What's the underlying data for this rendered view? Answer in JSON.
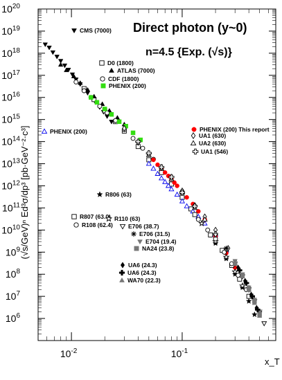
{
  "chart_data": {
    "type": "scatter",
    "title": "Direct photon (y~0)",
    "subtitle": "n=4.5  {Exp. (√s)}",
    "xlabel": "x_T",
    "ylabel": "(√s/GeV)ⁿ Ed³σ/dp³ [pb·GeV⁻²·c³]",
    "x_scale": "log",
    "y_scale": "log",
    "xlim": [
      0.005,
      0.7
    ],
    "ylim": [
      100000.0,
      1e+20
    ],
    "x_tick_labels": [
      "10^-2",
      "10^-1"
    ],
    "y_tick_labels": [
      "10^6",
      "10^7",
      "10^8",
      "10^9",
      "10^10",
      "10^11",
      "10^12",
      "10^13",
      "10^14",
      "10^15",
      "10^16",
      "10^17",
      "10^18",
      "10^19",
      "10^20"
    ],
    "grid": false,
    "colors": {
      "red": "#ff0000",
      "green": "#33dd11",
      "blue": "#0000ee",
      "gray": "#777777",
      "black": "#000000"
    },
    "series": [
      {
        "name": "CMS (7000)",
        "marker": "triangle-down-filled",
        "color": "#000000",
        "x": [
          0.0058,
          0.0063,
          0.0068,
          0.0074,
          0.008,
          0.0087,
          0.0094,
          0.0102,
          0.011,
          0.012,
          0.013,
          0.014,
          0.0152,
          0.0165,
          0.018,
          0.0195,
          0.021,
          0.023
        ],
        "y": [
          2.5e+18,
          1.8e+18,
          1.1e+18,
          7e+17,
          4.5e+17,
          2.8e+17,
          1.8e+17,
          1.1e+17,
          6.5e+16,
          4e+16,
          2.5e+16,
          1.6e+16,
          1e+16,
          6000000000000000.0,
          3600000000000000.0,
          2200000000000000.0,
          1400000000000000.0,
          800000000000000.0
        ]
      },
      {
        "name": "D0 (1800)",
        "marker": "square-open",
        "color": "#000000",
        "x": [
          0.013,
          0.016,
          0.02,
          0.025,
          0.03,
          0.04,
          0.05,
          0.065,
          0.08,
          0.1,
          0.12
        ],
        "y": [
          2.5e+16,
          8000000000000000.0,
          2500000000000000.0,
          800000000000000.0,
          300000000000000.0,
          60000000000000.0,
          15000000000000.0,
          4000000000000.0,
          1200000000000.0,
          300000000000.0,
          90000000000.0
        ]
      },
      {
        "name": "ATLAS (7000)",
        "marker": "triangle-up-filled",
        "color": "#000000",
        "x": [
          0.008,
          0.009,
          0.0105,
          0.012,
          0.014,
          0.016,
          0.019,
          0.022,
          0.026,
          0.03
        ],
        "y": [
          3e+17,
          1.7e+17,
          9e+16,
          4.5e+16,
          2.2e+16,
          1.1e+16,
          5000000000000000.0,
          2500000000000000.0,
          1200000000000000.0,
          600000000000000.0
        ]
      },
      {
        "name": "CDF (1800)",
        "marker": "circle-open",
        "color": "#000000",
        "x": [
          0.011,
          0.013,
          0.015,
          0.018,
          0.021,
          0.025,
          0.03,
          0.036,
          0.044,
          0.055
        ],
        "y": [
          5e+16,
          2e+16,
          1e+16,
          4000000000000000.0,
          2000000000000000.0,
          900000000000000.0,
          350000000000000.0,
          140000000000000.0,
          50000000000000.0,
          16000000000000.0
        ]
      },
      {
        "name": "PHENIX (200)",
        "marker": "square-filled",
        "color": "#33dd11",
        "x": [
          0.015,
          0.017,
          0.02,
          0.023,
          0.027,
          0.031,
          0.036,
          0.042
        ],
        "y": [
          1e+16,
          6000000000000000.0,
          3000000000000000.0,
          1700000000000000.0,
          800000000000000.0,
          500000000000000.0,
          250000000000000.0,
          120000000000000.0
        ]
      },
      {
        "name": "PHENIX (200)",
        "marker": "triangle-up-open",
        "color": "#0000ee",
        "x": [
          0.05,
          0.055,
          0.06,
          0.065,
          0.07,
          0.075,
          0.08,
          0.09,
          0.1,
          0.11,
          0.125,
          0.14,
          0.16,
          0.2,
          0.25
        ],
        "y": [
          10000000000000.0,
          6000000000000.0,
          3500000000000.0,
          2200000000000.0,
          1500000000000.0,
          1000000000000.0,
          700000000000.0,
          400000000000.0,
          200000000000.0,
          120000000000.0,
          70000000000.0,
          40000000000.0,
          20000000000.0,
          6000000000.0,
          1200000000.0
        ]
      },
      {
        "name": "PHENIX (200) This report",
        "marker": "circle-filled",
        "color": "#ff0000",
        "x": [
          0.055,
          0.06,
          0.065,
          0.07,
          0.075,
          0.08,
          0.085,
          0.09,
          0.1,
          0.11,
          0.125,
          0.14,
          0.16,
          0.2,
          0.25,
          0.3
        ],
        "y": [
          15000000000000.0,
          9000000000000.0,
          6000000000000.0,
          4000000000000.0,
          2800000000000.0,
          2000000000000.0,
          1400000000000.0,
          1000000000000.0,
          500000000000.0,
          300000000000.0,
          150000000000.0,
          70000000000.0,
          30000000000.0,
          5000000000.0,
          900000000.0,
          200000000.0
        ]
      },
      {
        "name": "UA1 (630)",
        "marker": "diamond-open",
        "color": "#000000",
        "x": [
          0.03,
          0.04,
          0.05,
          0.065,
          0.08,
          0.1,
          0.13,
          0.16,
          0.2,
          0.26
        ],
        "y": [
          400000000000000.0,
          90000000000000.0,
          30000000000000.0,
          7000000000000.0,
          2500000000000.0,
          600000000000.0,
          130000000000.0,
          40000000000.0,
          10000000000.0,
          1500000000.0
        ]
      },
      {
        "name": "UA2 (630)",
        "marker": "triangle-up-open",
        "color": "#000000",
        "x": [
          0.05,
          0.065,
          0.08,
          0.1,
          0.13,
          0.16,
          0.2,
          0.25
        ],
        "y": [
          25000000000000.0,
          6000000000000.0,
          2000000000000.0,
          500000000000.0,
          100000000000.0,
          30000000000.0,
          7000000000.0,
          1300000000.0
        ]
      },
      {
        "name": "UA1 (546)",
        "marker": "cross-open",
        "color": "#000000",
        "x": [
          0.04,
          0.05,
          0.065,
          0.08,
          0.1,
          0.13
        ],
        "y": [
          100000000000000.0,
          30000000000000.0,
          7000000000000.0,
          2500000000000.0,
          500000000000.0,
          120000000000.0
        ]
      },
      {
        "name": "R806 (63)",
        "marker": "star-filled",
        "color": "#000000",
        "x": [
          0.15,
          0.2,
          0.25,
          0.3,
          0.35,
          0.4,
          0.45
        ],
        "y": [
          20000000000.0,
          2500000000.0,
          500000000.0,
          100000000.0,
          25000000.0,
          6000000.0,
          1500000.0
        ]
      },
      {
        "name": "R807 (63.0)",
        "marker": "square-open",
        "color": "#000000",
        "x": [
          0.13,
          0.18,
          0.23,
          0.28,
          0.33,
          0.4
        ],
        "y": [
          50000000000.0,
          6000000000.0,
          1200000000.0,
          250000000.0,
          60000000.0,
          10000000.0
        ]
      },
      {
        "name": "R110 (63)",
        "marker": "star-open",
        "color": "#000000",
        "x": [
          0.15,
          0.2,
          0.25,
          0.3,
          0.35
        ],
        "y": [
          20000000000.0,
          3000000000.0,
          600000000.0,
          130000000.0,
          30000000.0
        ]
      },
      {
        "name": "R108 (62.4)",
        "marker": "circle-open",
        "color": "#000000",
        "x": [
          0.14,
          0.17,
          0.2,
          0.24,
          0.28,
          0.32,
          0.38
        ],
        "y": [
          30000000000.0,
          10000000000.0,
          4000000000.0,
          1000000000.0,
          300000000.0,
          90000000.0,
          20000000.0
        ]
      },
      {
        "name": "E706 (38.7)",
        "marker": "triangle-down-open",
        "color": "#000000",
        "x": [
          0.2,
          0.25,
          0.3,
          0.35,
          0.4,
          0.45,
          0.5,
          0.55
        ],
        "y": [
          6000000000.0,
          1300000000.0,
          300000000.0,
          80000000.0,
          20000000.0,
          6000000.0,
          2000000.0,
          600000.0
        ]
      },
      {
        "name": "E706 (31.5)",
        "marker": "asterisk",
        "color": "#000000",
        "x": [
          0.25,
          0.3,
          0.35,
          0.4,
          0.45,
          0.5
        ],
        "y": [
          1500000000.0,
          350000000.0,
          90000000.0,
          25000000.0,
          7000000.0,
          2000000.0
        ]
      },
      {
        "name": "E704 (19.4)",
        "marker": "triangle-down-filled",
        "color": "#777777",
        "x": [
          0.3,
          0.35,
          0.4,
          0.45,
          0.5
        ],
        "y": [
          400000000.0,
          100000000.0,
          25000000.0,
          7000000.0,
          2000000.0
        ]
      },
      {
        "name": "NA24 (23.8)",
        "marker": "square-filled",
        "color": "#777777",
        "x": [
          0.3,
          0.35,
          0.4,
          0.45,
          0.5
        ],
        "y": [
          300000000.0,
          90000000.0,
          20000000.0,
          6000000.0,
          1500000.0
        ]
      },
      {
        "name": "UA6 (24.3)",
        "marker": "diamond-filled",
        "color": "#000000",
        "x": [
          0.32,
          0.37,
          0.42,
          0.47
        ],
        "y": [
          200000000.0,
          50000000.0,
          12000000.0,
          3000000.0
        ]
      },
      {
        "name": "UA6 (24.3)",
        "marker": "cross-filled",
        "color": "#000000",
        "x": [
          0.33,
          0.38,
          0.43,
          0.48
        ],
        "y": [
          150000000.0,
          40000000.0,
          10000000.0,
          2500000.0
        ]
      },
      {
        "name": "WA70 (22.3)",
        "marker": "triangle-up-filled",
        "color": "#777777",
        "x": [
          0.35,
          0.4,
          0.45,
          0.5
        ],
        "y": [
          80000000.0,
          20000000.0,
          5000000.0,
          1300000.0
        ]
      }
    ],
    "legend": [
      {
        "label": "CMS (7000)",
        "series": 0
      },
      {
        "label": "D0 (1800)",
        "series": 1
      },
      {
        "label": "ATLAS (7000)",
        "series": 2
      },
      {
        "label": "CDF (1800)",
        "series": 3
      },
      {
        "label": "PHENIX (200)",
        "series": 4
      },
      {
        "label": "PHENIX (200)",
        "series": 5
      },
      {
        "label": "PHENIX (200) This report",
        "series": 6
      },
      {
        "label": "UA1 (630)",
        "series": 7
      },
      {
        "label": "UA2 (630)",
        "series": 8
      },
      {
        "label": "UA1 (546)",
        "series": 9
      },
      {
        "label": "R806 (63)",
        "series": 10
      },
      {
        "label": "R807 (63.0)",
        "series": 11
      },
      {
        "label": "R110 (63)",
        "series": 12
      },
      {
        "label": "R108 (62.4)",
        "series": 13
      },
      {
        "label": "E706 (38.7)",
        "series": 14
      },
      {
        "label": "E706 (31.5)",
        "series": 15
      },
      {
        "label": "E704 (19.4)",
        "series": 16
      },
      {
        "label": "NA24 (23.8)",
        "series": 17
      },
      {
        "label": "UA6 (24.3)",
        "series": 18
      },
      {
        "label": "UA6 (24.3)",
        "series": 19
      },
      {
        "label": "WA70 (22.3)",
        "series": 20
      }
    ]
  }
}
